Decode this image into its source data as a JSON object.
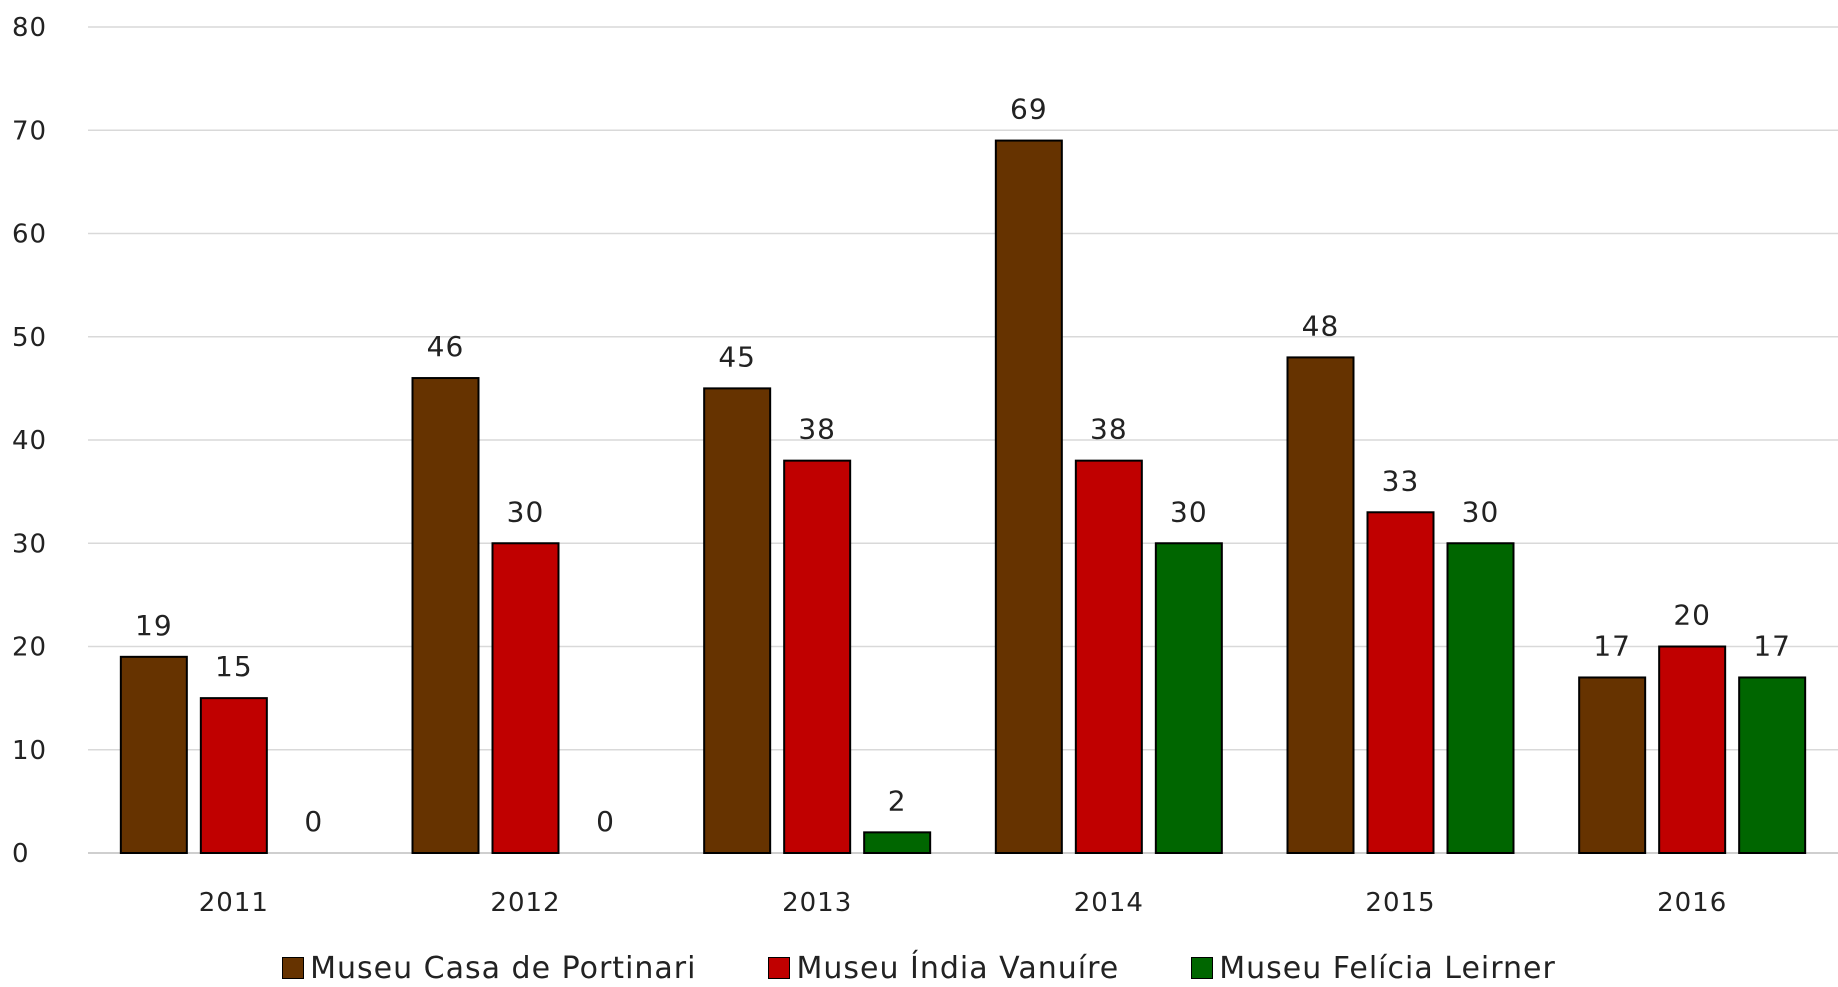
{
  "chart_data": {
    "type": "bar",
    "categories": [
      "2011",
      "2012",
      "2013",
      "2014",
      "2015",
      "2016"
    ],
    "series": [
      {
        "name": "Museu Casa de Portinari",
        "color": "#663300",
        "values": [
          19,
          46,
          45,
          69,
          48,
          17
        ]
      },
      {
        "name": "Museu Índia Vanuíre",
        "color": "#C00000",
        "values": [
          15,
          30,
          38,
          38,
          33,
          20
        ]
      },
      {
        "name": "Museu Felícia Leirner",
        "color": "#006600",
        "values": [
          0,
          0,
          2,
          30,
          30,
          17
        ]
      }
    ],
    "ylim": [
      0,
      80
    ],
    "yticks": [
      "0",
      "10",
      "20",
      "30",
      "40",
      "50",
      "60",
      "70",
      "80"
    ],
    "grid": true,
    "legend_position": "bottom-center",
    "data_labels": true
  }
}
